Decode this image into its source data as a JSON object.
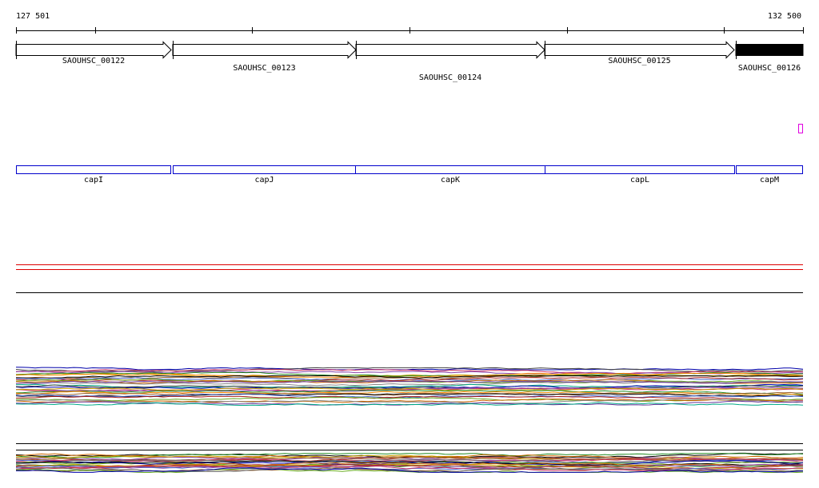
{
  "coordinates": {
    "start_label": "127 501",
    "end_label": "132 500"
  },
  "colors": {
    "axis": "#000000",
    "gene_track": "#0000cc",
    "feature_marker": "#e000e0",
    "highlight_lines": "#dd0000",
    "selected_feature_fill": "#000000"
  },
  "annotation_track": {
    "features": [
      {
        "id": "SAOUHSC_00122",
        "strand": "+",
        "selected": false
      },
      {
        "id": "SAOUHSC_00123",
        "strand": "+",
        "selected": false
      },
      {
        "id": "SAOUHSC_00124",
        "strand": "+",
        "selected": false
      },
      {
        "id": "SAOUHSC_00125",
        "strand": "+",
        "selected": false
      },
      {
        "id": "SAOUHSC_00126",
        "strand": "+",
        "selected": true
      }
    ]
  },
  "gene_track": {
    "genes": [
      {
        "name": "capI"
      },
      {
        "name": "capJ"
      },
      {
        "name": "capK"
      },
      {
        "name": "capL"
      },
      {
        "name": "capM"
      }
    ]
  },
  "coverage_panel_1": {
    "series_colors": [
      "#0000aa",
      "#444444",
      "#cc3366",
      "#8844aa",
      "#c8a000",
      "#228b22",
      "#ff8800",
      "#996633",
      "#000000",
      "#4466cc",
      "#aa2222",
      "#66aa22",
      "#cc6600",
      "#888888",
      "#663399",
      "#00aa88"
    ]
  },
  "coverage_panel_2": {
    "series_colors": [
      "#000000",
      "#228b22",
      "#cc6600",
      "#8844aa",
      "#c8a000",
      "#aa2222",
      "#4466cc",
      "#996633",
      "#cc3366",
      "#666666",
      "#66aa22",
      "#0000aa"
    ]
  }
}
